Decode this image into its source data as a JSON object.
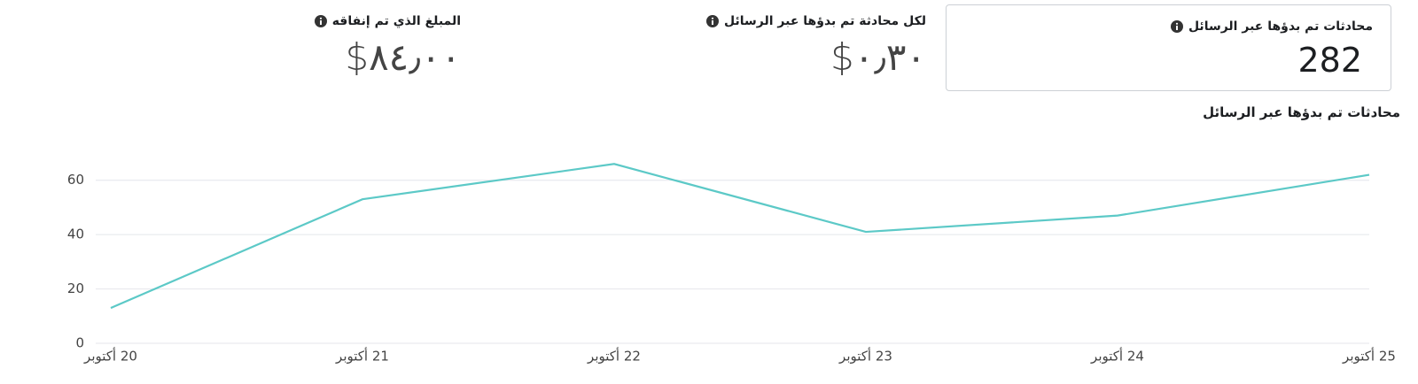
{
  "metrics": [
    {
      "label": "محادثات تم بدؤها عبر الرسائل",
      "value": "282"
    },
    {
      "label": "لكل محادثة تم بدؤها عبر الرسائل",
      "value": "٠٫٣٠$"
    },
    {
      "label": "المبلغ الذي تم إنفاقه",
      "value": "٨٤٫٠٠$"
    }
  ],
  "chart_data": {
    "type": "line",
    "title": "محادثات تم بدؤها عبر الرسائل",
    "categories": [
      "20 أكتوبر",
      "21 أكتوبر",
      "22 أكتوبر",
      "23 أكتوبر",
      "24 أكتوبر",
      "25 أكتوبر"
    ],
    "series": [
      {
        "color": "#5cc9c7",
        "values": [
          13,
          53,
          66,
          41,
          47,
          62
        ]
      }
    ],
    "ylim": [
      0,
      70
    ],
    "yticks": [
      0,
      20,
      40,
      60
    ],
    "grid": true
  }
}
